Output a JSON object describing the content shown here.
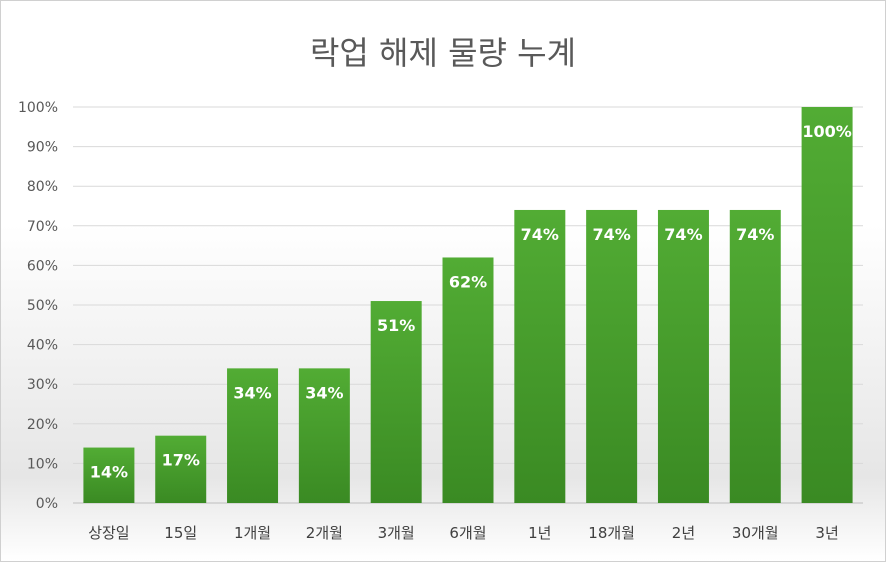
{
  "chart_data": {
    "type": "bar",
    "title": "락업 해제 물량 누계",
    "xlabel": "",
    "ylabel": "",
    "categories": [
      "상장일",
      "15일",
      "1개월",
      "2개월",
      "3개월",
      "6개월",
      "1년",
      "18개월",
      "2년",
      "30개월",
      "3년"
    ],
    "values": [
      14,
      17,
      34,
      34,
      51,
      62,
      74,
      74,
      74,
      74,
      100
    ],
    "data_labels": [
      "14%",
      "17%",
      "34%",
      "34%",
      "51%",
      "62%",
      "74%",
      "74%",
      "74%",
      "74%",
      "100%"
    ],
    "ylim": [
      0,
      100
    ],
    "y_ticks": [
      0,
      10,
      20,
      30,
      40,
      50,
      60,
      70,
      80,
      90,
      100
    ],
    "y_tick_labels": [
      "0%",
      "10%",
      "20%",
      "30%",
      "40%",
      "50%",
      "60%",
      "70%",
      "80%",
      "90%",
      "100%"
    ],
    "grid": true,
    "legend": "none",
    "bar_color_top": "#52ac34",
    "bar_color_bottom": "#3a8a23"
  }
}
